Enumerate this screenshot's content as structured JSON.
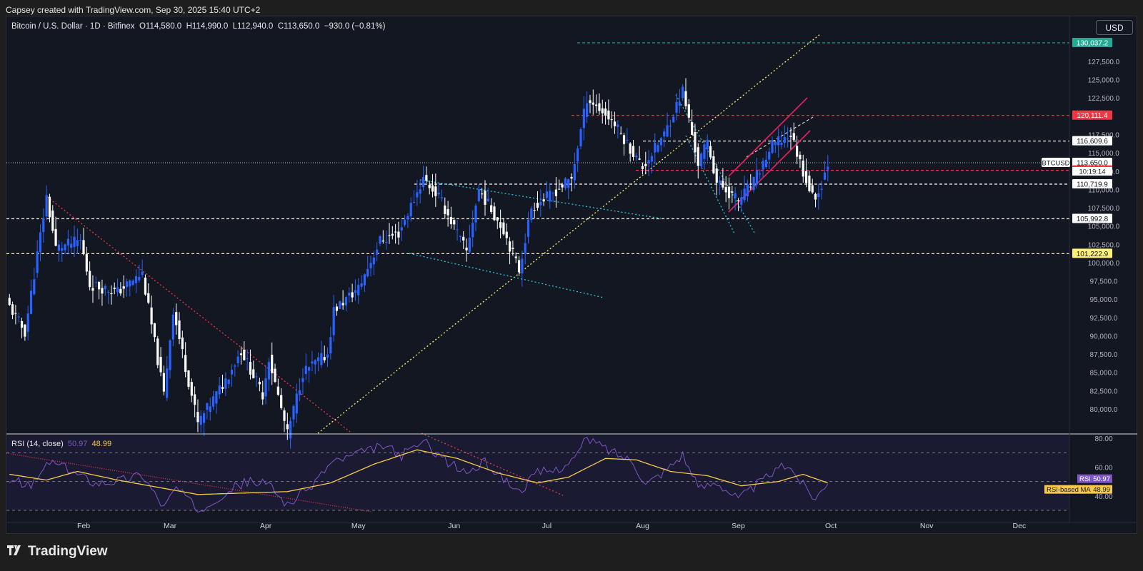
{
  "header": {
    "caption": "Capsey created with TradingView.com, Sep 30, 2025 15:40 UTC+2"
  },
  "legend": {
    "symbol": "Bitcoin / U.S. Dollar · 1D · Bitfinex",
    "open": "O114,580.0",
    "high": "H114,990.0",
    "low": "L112,940.0",
    "close": "C113,650.0",
    "change": "−930.0 (−0.81%)"
  },
  "currency_button": "USD",
  "footer": {
    "brand": "TradingView"
  },
  "rsi_legend": {
    "label": "RSI (14, close)",
    "rsi_value": "50.97",
    "ma_value": "48.99"
  },
  "colors": {
    "background": "#131722",
    "candle": "#ffffff",
    "candle_alt": "#2962ff",
    "rsi": "#7e57c2",
    "rsi_ma": "#f7c948",
    "red_level": "#f23645",
    "green_level": "#22ab94",
    "yellow_level": "#fff176",
    "cyan_trend": "#26c6da",
    "pink_channel": "#e91e63"
  },
  "chart_data": [
    {
      "type": "candlestick",
      "title": "Bitcoin / U.S. Dollar · 1D · Bitfinex",
      "x_ticks": [
        "Feb",
        "Mar",
        "Apr",
        "May",
        "Jun",
        "Jul",
        "Aug",
        "Sep",
        "Oct",
        "Nov",
        "Dec"
      ],
      "y_ticks": [
        "80,000.0",
        "82,500.0",
        "85,000.0",
        "87,500.0",
        "90,000.0",
        "92,500.0",
        "95,000.0",
        "97,500.0",
        "100,000.0",
        "102,500.0",
        "105,000.0",
        "107,500.0",
        "110,000.0",
        "112,500.0",
        "115,000.0",
        "117,500.0",
        "122,500.0",
        "125,000.0",
        "127,500.0"
      ],
      "ylim": [
        79000,
        131500
      ],
      "price_path": [
        [
          "2025-01-08",
          94000
        ],
        [
          "2025-01-13",
          90500
        ],
        [
          "2025-01-20",
          109000
        ],
        [
          "2025-01-23",
          102000
        ],
        [
          "2025-01-31",
          103000
        ],
        [
          "2025-02-03",
          97000
        ],
        [
          "2025-02-12",
          96000
        ],
        [
          "2025-02-20",
          98500
        ],
        [
          "2025-02-27",
          82000
        ],
        [
          "2025-03-02",
          93500
        ],
        [
          "2025-03-10",
          78000
        ],
        [
          "2025-03-19",
          84000
        ],
        [
          "2025-03-24",
          88000
        ],
        [
          "2025-03-31",
          82000
        ],
        [
          "2025-04-02",
          87000
        ],
        [
          "2025-04-08",
          76500
        ],
        [
          "2025-04-13",
          85000
        ],
        [
          "2025-04-21",
          87500
        ],
        [
          "2025-04-23",
          93500
        ],
        [
          "2025-05-01",
          96500
        ],
        [
          "2025-05-08",
          103000
        ],
        [
          "2025-05-14",
          104000
        ],
        [
          "2025-05-22",
          111500
        ],
        [
          "2025-05-27",
          109000
        ],
        [
          "2025-06-05",
          101500
        ],
        [
          "2025-06-09",
          110000
        ],
        [
          "2025-06-17",
          104500
        ],
        [
          "2025-06-22",
          99000
        ],
        [
          "2025-06-26",
          107500
        ],
        [
          "2025-07-03",
          109500
        ],
        [
          "2025-07-09",
          111500
        ],
        [
          "2025-07-14",
          122500
        ],
        [
          "2025-07-22",
          119500
        ],
        [
          "2025-08-01",
          113000
        ],
        [
          "2025-08-08",
          117500
        ],
        [
          "2025-08-14",
          123500
        ],
        [
          "2025-08-19",
          113500
        ],
        [
          "2025-08-22",
          116500
        ],
        [
          "2025-08-25",
          111000
        ],
        [
          "2025-09-01",
          108500
        ],
        [
          "2025-09-06",
          111000
        ],
        [
          "2025-09-12",
          116000
        ],
        [
          "2025-09-18",
          117500
        ],
        [
          "2025-09-22",
          112500
        ],
        [
          "2025-09-25",
          109000
        ],
        [
          "2025-09-27",
          109500
        ],
        [
          "2025-09-30",
          113650
        ]
      ],
      "last_close": 113650,
      "price_labels": [
        {
          "value": 130037.2,
          "label": "130,037.2",
          "style": "green"
        },
        {
          "value": 120111.4,
          "label": "120,111.4",
          "style": "red"
        },
        {
          "value": 116609.6,
          "label": "116,609.6",
          "style": "white"
        },
        {
          "value": 113650.0,
          "label": "113,650.0",
          "style": "white"
        },
        {
          "value": 112608.2,
          "label": "112,608.2",
          "style": "red"
        },
        {
          "value": 110719.9,
          "label": "110,719.9",
          "style": "white"
        },
        {
          "value": 105992.8,
          "label": "105,992.8",
          "style": "white"
        },
        {
          "value": 101222.9,
          "label": "101,222.9",
          "style": "yellow"
        }
      ],
      "symbol_tag": "BTCUSD",
      "countdown": "10:19:14"
    },
    {
      "type": "line",
      "title": "RSI (14, close)",
      "y_ticks": [
        "80.00",
        "60.00",
        "40.00"
      ],
      "ylim": [
        30,
        82
      ],
      "levels": [
        70,
        50,
        30
      ],
      "series": [
        {
          "name": "RSI",
          "color": "#7e57c2",
          "last": 50.97,
          "path": [
            [
              "2025-01-08",
              52
            ],
            [
              "2025-01-15",
              46
            ],
            [
              "2025-01-21",
              64
            ],
            [
              "2025-01-28",
              57
            ],
            [
              "2025-02-05",
              49
            ],
            [
              "2025-02-13",
              51
            ],
            [
              "2025-02-20",
              55
            ],
            [
              "2025-02-27",
              32
            ],
            [
              "2025-03-03",
              46
            ],
            [
              "2025-03-10",
              30
            ],
            [
              "2025-03-20",
              44
            ],
            [
              "2025-03-26",
              50
            ],
            [
              "2025-04-02",
              48
            ],
            [
              "2025-04-08",
              34
            ],
            [
              "2025-04-15",
              45
            ],
            [
              "2025-04-22",
              63
            ],
            [
              "2025-05-01",
              69
            ],
            [
              "2025-05-09",
              75
            ],
            [
              "2025-05-15",
              68
            ],
            [
              "2025-05-22",
              78
            ],
            [
              "2025-05-30",
              63
            ],
            [
              "2025-06-05",
              56
            ],
            [
              "2025-06-11",
              63
            ],
            [
              "2025-06-17",
              52
            ],
            [
              "2025-06-22",
              43
            ],
            [
              "2025-06-28",
              56
            ],
            [
              "2025-07-04",
              58
            ],
            [
              "2025-07-10",
              66
            ],
            [
              "2025-07-14",
              80
            ],
            [
              "2025-07-21",
              72
            ],
            [
              "2025-07-29",
              64
            ],
            [
              "2025-08-02",
              48
            ],
            [
              "2025-08-09",
              59
            ],
            [
              "2025-08-14",
              69
            ],
            [
              "2025-08-19",
              45
            ],
            [
              "2025-08-25",
              50
            ],
            [
              "2025-09-01",
              38
            ],
            [
              "2025-09-06",
              46
            ],
            [
              "2025-09-12",
              56
            ],
            [
              "2025-09-17",
              62
            ],
            [
              "2025-09-22",
              48
            ],
            [
              "2025-09-26",
              38
            ],
            [
              "2025-09-30",
              50.97
            ]
          ]
        },
        {
          "name": "RSI-based MA",
          "color": "#f7c948",
          "last": 48.99,
          "path": [
            [
              "2025-01-08",
              55
            ],
            [
              "2025-01-20",
              51
            ],
            [
              "2025-01-30",
              57
            ],
            [
              "2025-02-12",
              51
            ],
            [
              "2025-02-25",
              46
            ],
            [
              "2025-03-10",
              41
            ],
            [
              "2025-03-25",
              42
            ],
            [
              "2025-04-08",
              43
            ],
            [
              "2025-04-22",
              49
            ],
            [
              "2025-05-06",
              62
            ],
            [
              "2025-05-20",
              72
            ],
            [
              "2025-06-02",
              66
            ],
            [
              "2025-06-15",
              56
            ],
            [
              "2025-06-28",
              49
            ],
            [
              "2025-07-08",
              53
            ],
            [
              "2025-07-20",
              66
            ],
            [
              "2025-07-30",
              65
            ],
            [
              "2025-08-10",
              57
            ],
            [
              "2025-08-22",
              54
            ],
            [
              "2025-09-02",
              47
            ],
            [
              "2025-09-14",
              50
            ],
            [
              "2025-09-22",
              55
            ],
            [
              "2025-09-30",
              48.99
            ]
          ]
        }
      ],
      "value_tags": [
        {
          "label": "RSI",
          "value": "50.97"
        },
        {
          "label": "RSI-based MA",
          "value": "48.99"
        }
      ]
    }
  ]
}
